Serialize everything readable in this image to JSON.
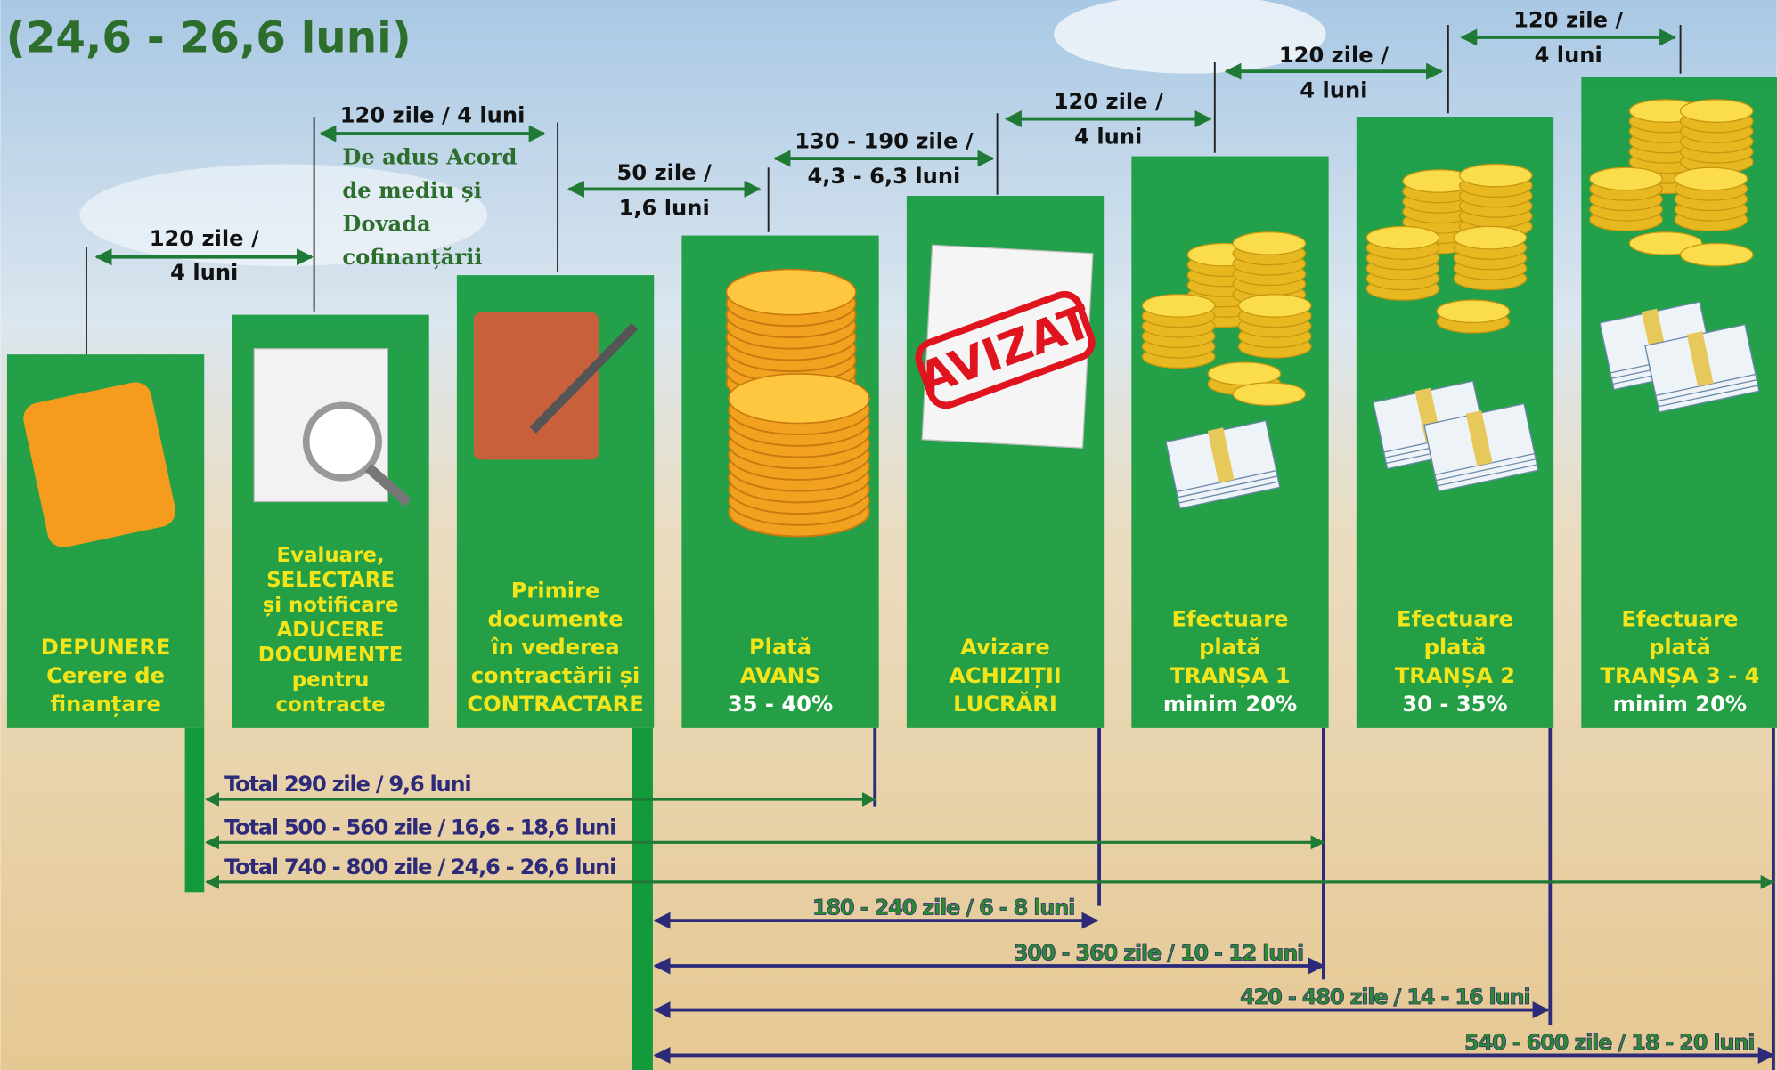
{
  "title": "(24,6 - 26,6 luni)",
  "steps": [
    {
      "lines": [
        "DEPUNERE",
        "Cerere de",
        "finanțare"
      ]
    },
    {
      "lines": [
        "Evaluare,",
        "SELECTARE",
        "și notificare",
        "ADUCERE",
        "DOCUMENTE",
        "pentru",
        "contracte"
      ]
    },
    {
      "lines": [
        "Primire",
        "documente",
        "în vederea",
        "contractării și",
        "CONTRACTARE"
      ]
    },
    {
      "lines": [
        "Plată",
        "AVANS"
      ],
      "detail": "35 - 40%"
    },
    {
      "lines": [
        "Avizare",
        "ACHIZIȚII",
        "LUCRĂRI"
      ]
    },
    {
      "lines": [
        "Efectuare",
        "plată",
        "TRANȘA 1"
      ],
      "detail": "minim 20%"
    },
    {
      "lines": [
        "Efectuare",
        "plată",
        "TRANȘA 2"
      ],
      "detail": "30 - 35%"
    },
    {
      "lines": [
        "Efectuare",
        "plată",
        "TRANȘA 3 - 4"
      ],
      "detail": "minim 20%"
    }
  ],
  "stamp": "AVIZAT",
  "top_intervals": [
    {
      "lines": [
        "120 zile /",
        "4 luni"
      ]
    },
    {
      "lines": [
        "120 zile / 4 luni"
      ]
    },
    {
      "lines": [
        "50 zile /",
        "1,6 luni"
      ]
    },
    {
      "lines": [
        "130 - 190 zile /",
        "4,3 - 6,3 luni"
      ]
    },
    {
      "lines": [
        "120 zile /",
        "4 luni"
      ]
    },
    {
      "lines": [
        "120 zile /",
        "4 luni"
      ]
    },
    {
      "lines": [
        "120 zile /",
        "4 luni"
      ]
    }
  ],
  "note": {
    "lines": [
      "De adus Acord",
      "de mediu și",
      "Dovada",
      "cofinanțării"
    ]
  },
  "totals": [
    "Total 290 zile / 9,6 luni",
    "Total 500 - 560 zile / 16,6 - 18,6 luni",
    "Total 740 - 800 zile / 24,6 - 26,6 luni"
  ],
  "ranges": [
    "180 - 240 zile / 6 - 8 luni",
    "300 - 360 zile / 10 - 12 luni",
    "420 - 480 zile / 14 - 16 luni",
    "540 - 600 zile / 18 - 20 luni"
  ]
}
